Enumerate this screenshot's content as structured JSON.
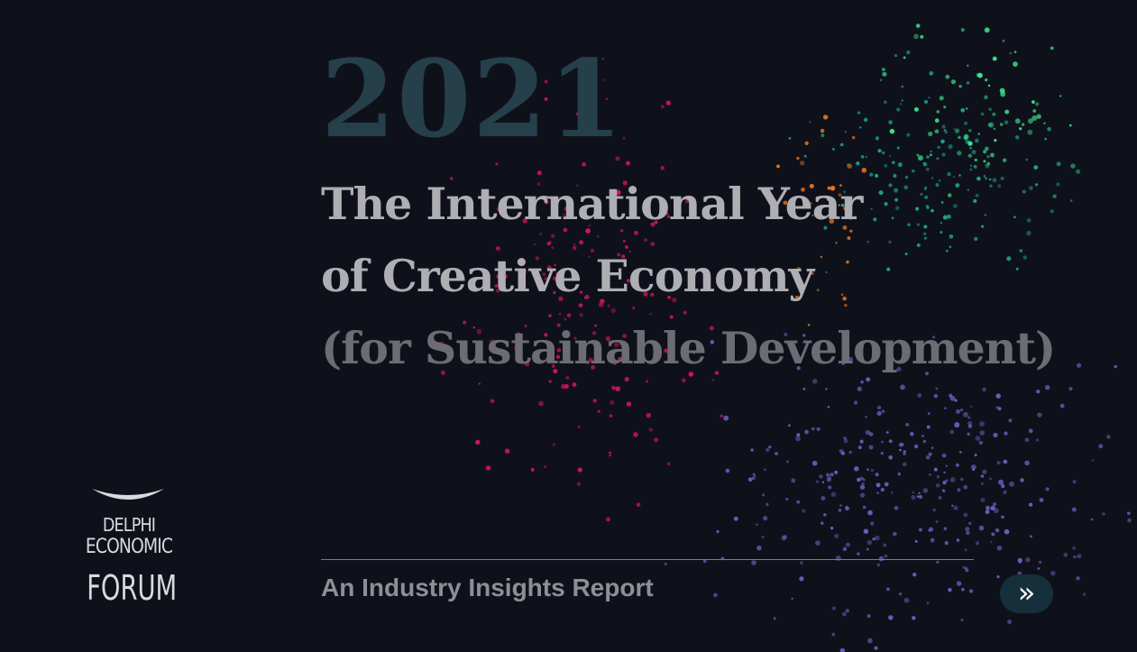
{
  "hero": {
    "year": "2021",
    "title_line1": "The International Year",
    "title_line2": "of Creative Economy",
    "title_line3": "(for Sustainable Development)",
    "subtitle": "An Industry Insights Report"
  },
  "logo": {
    "line1": "DELPHI",
    "line2": "ECONOMIC",
    "line3": "FORUM"
  },
  "navigation": {
    "next_glyph": "»"
  },
  "colors": {
    "background": "#0f111a",
    "year": "#25404a",
    "title": "#aeaeb3",
    "title_muted": "#6c6c73",
    "button": "#15303a",
    "particles_magenta": "#d0145a",
    "particles_orange": "#f07a20",
    "particles_teal": "#1fa58f",
    "particles_green": "#3ce28a",
    "particles_purple": "#6a5fc0"
  }
}
